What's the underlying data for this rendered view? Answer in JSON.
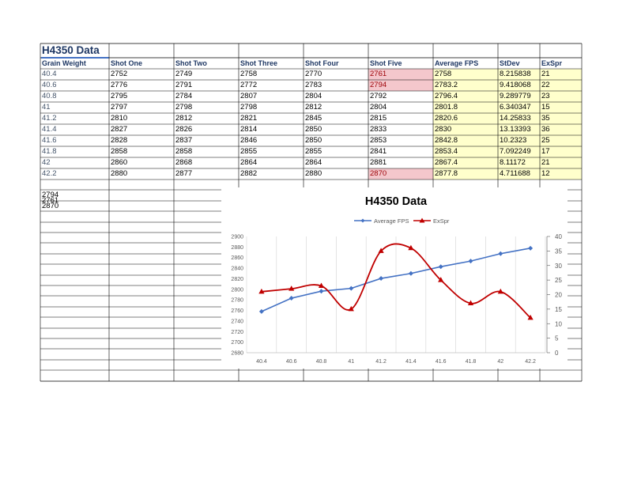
{
  "sheet": {
    "title": "H4350 Data",
    "headers": [
      "Grain Weight",
      "Shot One",
      "Shot Two",
      "Shot Three",
      "Shot Four",
      "Shot Five",
      "Average FPS",
      "StDev",
      "ExSpr"
    ],
    "rows": [
      [
        "40.4",
        "2752",
        "2749",
        "2758",
        "2770",
        "2761",
        "2758",
        "8.215838",
        "21"
      ],
      [
        "40.6",
        "2776",
        "2791",
        "2772",
        "2783",
        "2794",
        "2783.2",
        "9.418068",
        "22"
      ],
      [
        "40.8",
        "2795",
        "2784",
        "2807",
        "2804",
        "2792",
        "2796.4",
        "9.289779",
        "23"
      ],
      [
        "41",
        "2797",
        "2798",
        "2798",
        "2812",
        "2804",
        "2801.8",
        "6.340347",
        "15"
      ],
      [
        "41.2",
        "2810",
        "2812",
        "2821",
        "2845",
        "2815",
        "2820.6",
        "14.25833",
        "35"
      ],
      [
        "41.4",
        "2827",
        "2826",
        "2814",
        "2850",
        "2833",
        "2830",
        "13.13393",
        "36"
      ],
      [
        "41.6",
        "2828",
        "2837",
        "2846",
        "2850",
        "2853",
        "2842.8",
        "10.2323",
        "25"
      ],
      [
        "41.8",
        "2858",
        "2858",
        "2855",
        "2855",
        "2841",
        "2853.4",
        "7.092249",
        "17"
      ],
      [
        "42",
        "2860",
        "2868",
        "2864",
        "2864",
        "2881",
        "2867.4",
        "8.11172",
        "21"
      ],
      [
        "42.2",
        "2880",
        "2877",
        "2882",
        "2880",
        "2870",
        "2877.8",
        "4.711688",
        "12"
      ]
    ],
    "extra_values": [
      "2761",
      "2794",
      "2870"
    ],
    "colors": {
      "highlight_red": "#f4c7cc",
      "highlight_yellow": "#ffffcc",
      "title_underline": "#4472c4"
    }
  },
  "chart_data": {
    "type": "line",
    "title": "H4350 Data",
    "categories": [
      "40.4",
      "40.6",
      "40.8",
      "41",
      "41.2",
      "41.4",
      "41.6",
      "41.8",
      "42",
      "42.2"
    ],
    "series": [
      {
        "name": "Average FPS",
        "axis": "left",
        "color": "#4472c4",
        "marker": "diamond",
        "values": [
          2758,
          2783.2,
          2796.4,
          2801.8,
          2820.6,
          2830,
          2842.8,
          2853.4,
          2867.4,
          2877.8
        ]
      },
      {
        "name": "ExSpr",
        "axis": "right",
        "color": "#c00000",
        "marker": "triangle",
        "smooth": true,
        "values": [
          21,
          22,
          23,
          15,
          35,
          36,
          25,
          17,
          21,
          12
        ]
      }
    ],
    "y_left": {
      "min": 2680,
      "max": 2900,
      "ticks": [
        "2900",
        "2880",
        "2860",
        "2840",
        "2820",
        "2800",
        "2780",
        "2760",
        "2740",
        "2720",
        "2700",
        "2680"
      ]
    },
    "y_right": {
      "min": 0,
      "max": 40,
      "ticks": [
        "40",
        "35",
        "30",
        "25",
        "20",
        "15",
        "10",
        "5",
        "0"
      ]
    },
    "legend_position": "top",
    "grid": "vertical"
  }
}
